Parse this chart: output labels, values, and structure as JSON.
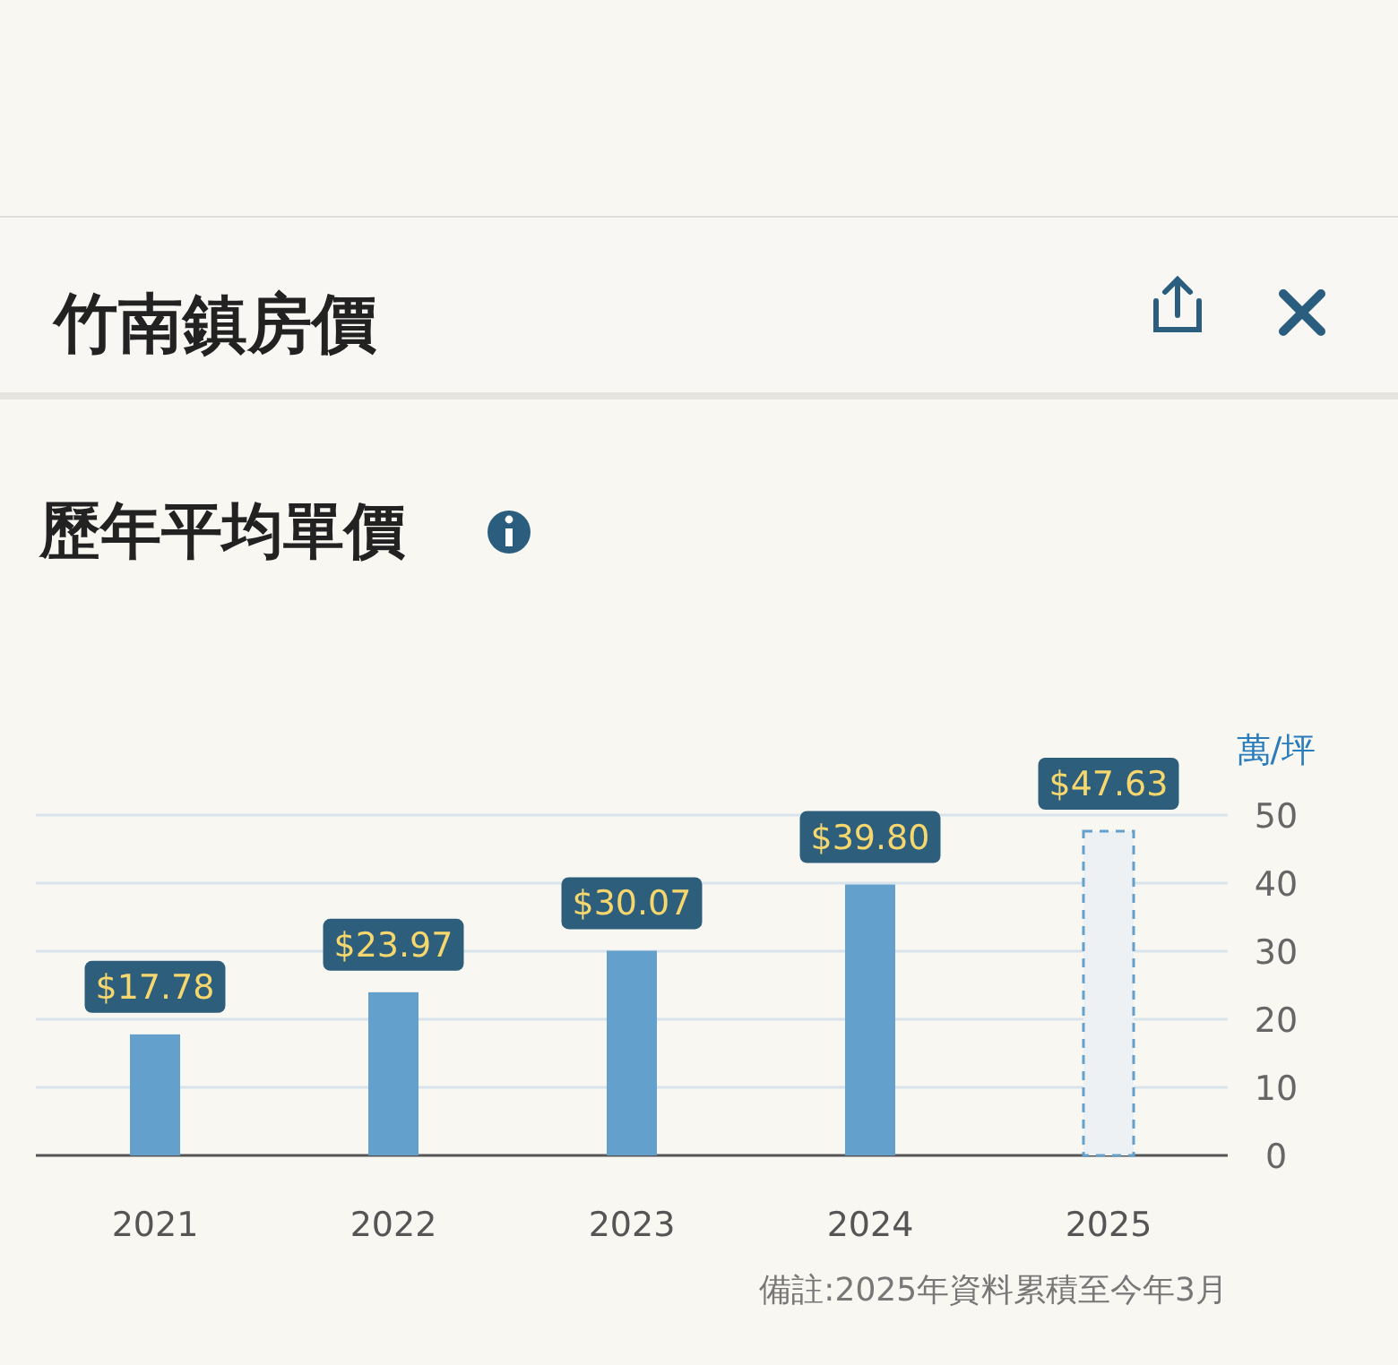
{
  "chart_data": {
    "type": "bar",
    "title": "竹南鎮房價",
    "subtitle": "歷年平均單價",
    "y2label": "萬/坪",
    "categories": [
      "2021",
      "2022",
      "2023",
      "2024",
      "2025"
    ],
    "series": [
      {
        "color": "#64a0cc",
        "values": [
          17.78,
          23.97,
          30.07,
          39.8,
          null
        ],
        "value_labels": [
          "$17.78",
          "$23.97",
          "$30.07",
          "$39.80",
          null
        ],
        "line_style": "solid",
        "axis": "y2"
      },
      {
        "color": "#edf1f4",
        "values": [
          null,
          null,
          null,
          null,
          47.63
        ],
        "value_labels": [
          null,
          null,
          null,
          null,
          "$47.63"
        ],
        "line_style": "dashed",
        "axis": "y2"
      }
    ],
    "y2lim": [
      0,
      50
    ],
    "y2ticks": [
      0,
      10,
      20,
      30,
      40,
      50
    ],
    "grid": "y",
    "annotations": [
      "備註:2025年資料累積至今年3月"
    ]
  }
}
